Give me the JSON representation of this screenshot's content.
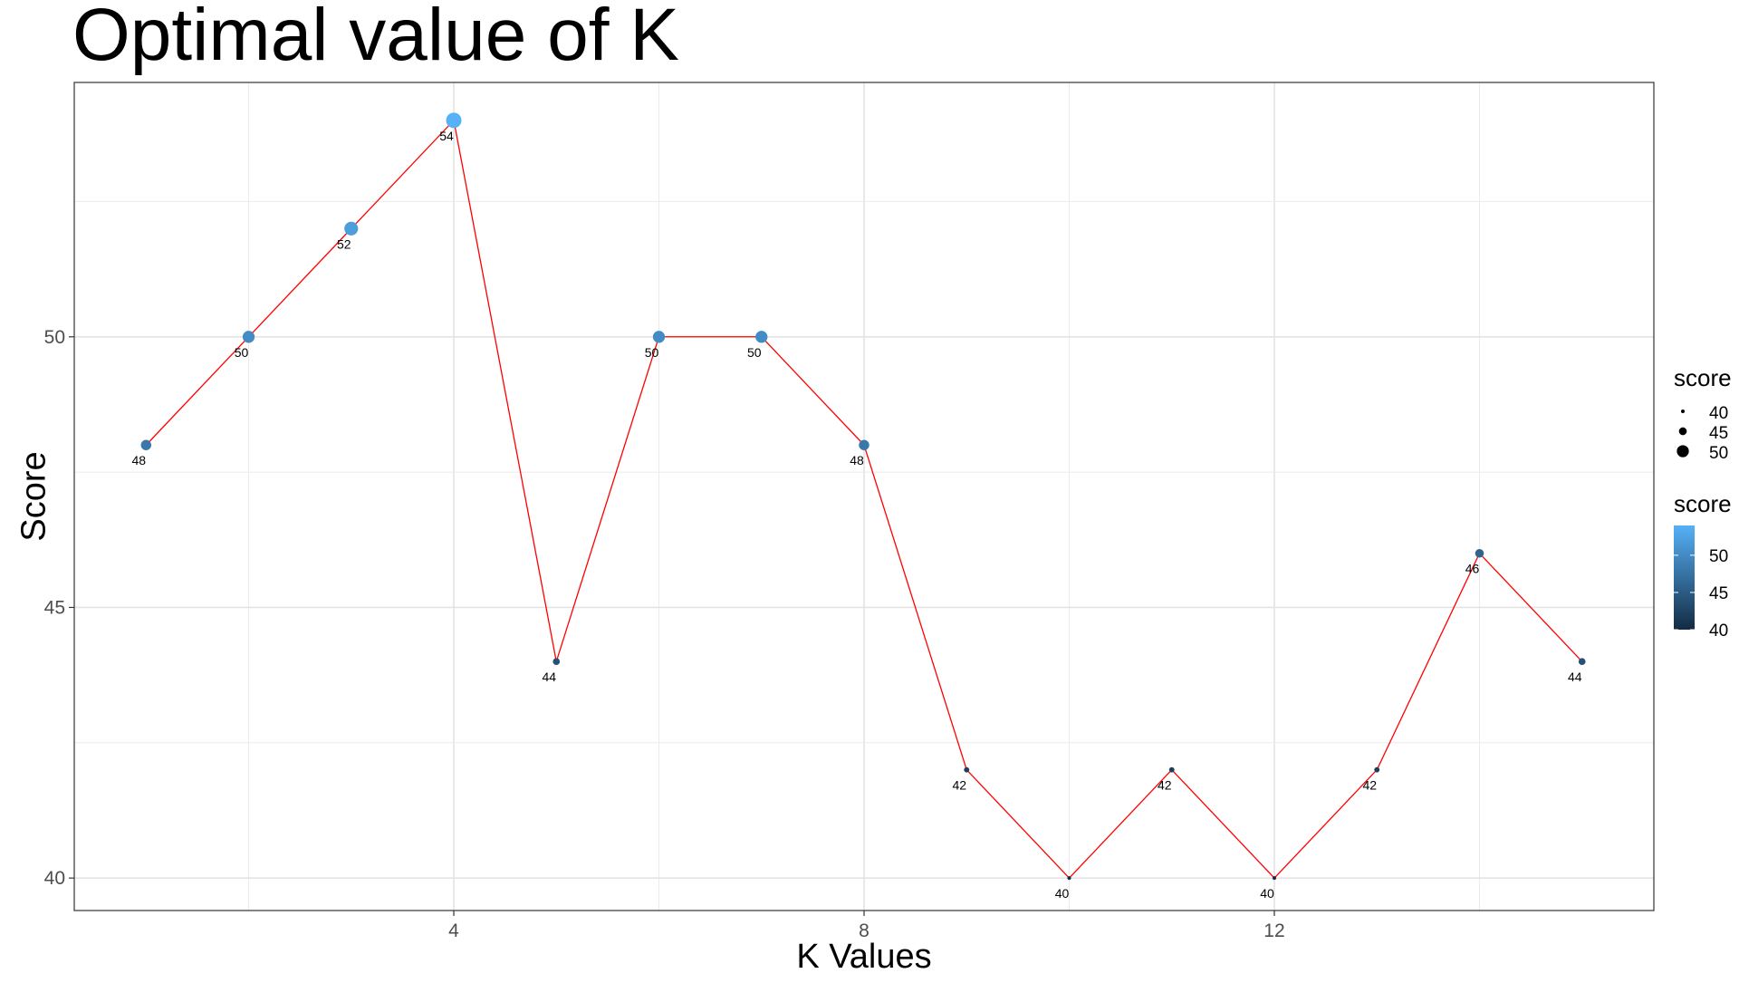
{
  "chart_data": {
    "type": "line",
    "title": "Optimal value of K",
    "xlabel": "K Values",
    "ylabel": "Score",
    "x": [
      1,
      2,
      3,
      4,
      5,
      6,
      7,
      8,
      9,
      10,
      11,
      12,
      13,
      14,
      15
    ],
    "y": [
      48,
      50,
      52,
      54,
      44,
      50,
      50,
      48,
      42,
      40,
      42,
      40,
      42,
      46,
      44
    ],
    "point_labels": [
      "48",
      "50",
      "52",
      "54",
      "44",
      "50",
      "50",
      "48",
      "42",
      "40",
      "42",
      "40",
      "42",
      "46",
      "44"
    ],
    "xlim": [
      0.3,
      15.7
    ],
    "ylim": [
      39.4,
      54.7
    ],
    "x_ticks": [
      4,
      8,
      12
    ],
    "x_tick_labels": [
      "4",
      "8",
      "12"
    ],
    "y_ticks": [
      40,
      45,
      50
    ],
    "y_tick_labels": [
      "40",
      "45",
      "50"
    ],
    "grid": true,
    "line_color": "#ff0000",
    "color_low": "#132b43",
    "color_high": "#56b1f7",
    "legend_placement": "right",
    "legend_size": {
      "title": "score",
      "entries": [
        {
          "label": "40",
          "value": 40
        },
        {
          "label": "45",
          "value": 45
        },
        {
          "label": "50",
          "value": 50
        }
      ]
    },
    "legend_color": {
      "title": "score",
      "entries": [
        {
          "label": "50",
          "value": 50
        },
        {
          "label": "45",
          "value": 45
        },
        {
          "label": "40",
          "value": 40
        }
      ]
    }
  }
}
